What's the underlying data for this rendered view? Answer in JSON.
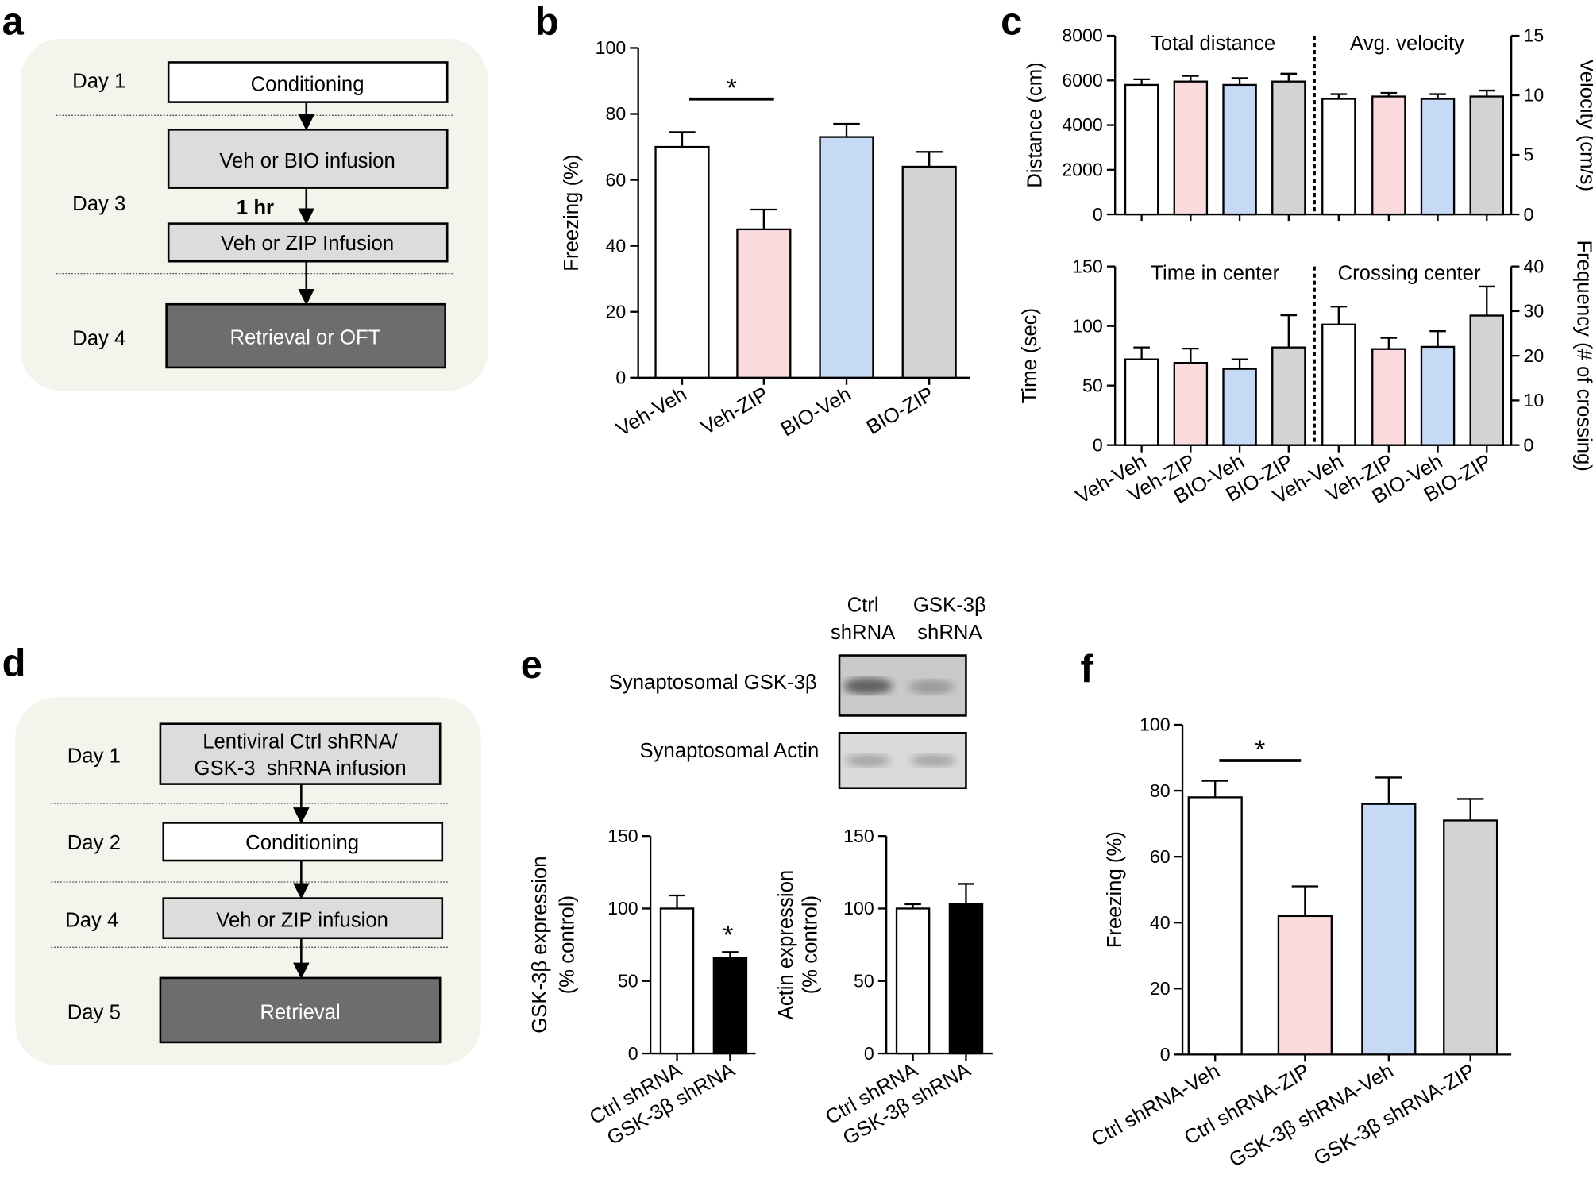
{
  "panel_labels": [
    "a",
    "b",
    "c",
    "d",
    "e",
    "f"
  ],
  "diagram_a": {
    "days": [
      "Day 1",
      "Day 3",
      "Day 4"
    ],
    "boxes": [
      "Conditioning",
      "Veh or BIO infusion",
      "Veh or ZIP Infusion",
      "Retrieval or OFT"
    ],
    "interval": "1 hr"
  },
  "diagram_d": {
    "days": [
      "Day 1",
      "Day 2",
      "Day 4",
      "Day 5"
    ],
    "boxes": [
      [
        "Lentiviral Ctrl shRNA/",
        "GSK-3  shRNA infusion"
      ],
      "Conditioning",
      "Veh or ZIP infusion",
      "Retrieval"
    ]
  },
  "blot": {
    "columns": [
      [
        "Ctrl",
        "shRNA"
      ],
      [
        "GSK-3β",
        "shRNA"
      ]
    ],
    "rows": [
      "Synaptosomal GSK-3β",
      "Synaptosomal Actin"
    ]
  },
  "chart_data": [
    {
      "type": "bar",
      "ylabel": "Freezing (%)",
      "categories": [
        "Veh-Veh",
        "Veh-ZIP",
        "BIO-Veh",
        "BIO-ZIP"
      ],
      "values": [
        70,
        45,
        73,
        64
      ],
      "errors": [
        4.5,
        6,
        4,
        4.5
      ],
      "colors": [
        "#ffffff",
        "#fadadd",
        "#c6d9f5",
        "#d3d3d3"
      ],
      "ylim": [
        0,
        100
      ],
      "yticks": [
        0,
        20,
        40,
        60,
        80,
        100
      ],
      "annotation": "*"
    },
    {
      "type": "bar",
      "title": "Total distance",
      "ylabel": "Distance (cm)",
      "values": [
        5800,
        5950,
        5800,
        5950
      ],
      "errors": [
        250,
        250,
        300,
        350
      ],
      "colors": [
        "#ffffff",
        "#fadadd",
        "#c6d9f5",
        "#d3d3d3"
      ],
      "ylim": [
        0,
        8000
      ],
      "yticks": [
        0,
        2000,
        4000,
        6000,
        8000
      ]
    },
    {
      "type": "bar",
      "title": "Avg. velocity",
      "y2label": "Velocity (cm/s)",
      "values": [
        9.7,
        9.9,
        9.7,
        9.9
      ],
      "errors": [
        0.4,
        0.3,
        0.4,
        0.5
      ],
      "colors": [
        "#ffffff",
        "#fadadd",
        "#c6d9f5",
        "#d3d3d3"
      ],
      "y2lim": [
        0,
        15
      ],
      "y2ticks": [
        0,
        5,
        10,
        15
      ]
    },
    {
      "type": "bar",
      "title": "Time in center",
      "ylabel": "Time (sec)",
      "categories": [
        "Veh-Veh",
        "Veh-ZIP",
        "BIO-Veh",
        "BIO-ZIP"
      ],
      "values": [
        72,
        69,
        64,
        82
      ],
      "errors": [
        10,
        12,
        8,
        27
      ],
      "colors": [
        "#ffffff",
        "#fadadd",
        "#c6d9f5",
        "#d3d3d3"
      ],
      "ylim": [
        0,
        150
      ],
      "yticks": [
        0,
        50,
        100,
        150
      ]
    },
    {
      "type": "bar",
      "title": "Crossing center",
      "y2label": "Frequency (# of crossing)",
      "categories": [
        "Veh-Veh",
        "Veh-ZIP",
        "BIO-Veh",
        "BIO-ZIP"
      ],
      "values": [
        27,
        21.5,
        22,
        29
      ],
      "errors": [
        4,
        2.5,
        3.5,
        6.5
      ],
      "colors": [
        "#ffffff",
        "#fadadd",
        "#c6d9f5",
        "#d3d3d3"
      ],
      "y2lim": [
        0,
        40
      ],
      "y2ticks": [
        0,
        10,
        20,
        30,
        40
      ]
    },
    {
      "type": "bar",
      "ylabel": [
        "GSK-3β expression",
        "(% control)"
      ],
      "categories": [
        "Ctrl shRNA",
        "GSK-3β shRNA"
      ],
      "values": [
        100,
        66
      ],
      "errors": [
        9,
        4
      ],
      "colors": [
        "#ffffff",
        "#000000"
      ],
      "ylim": [
        0,
        150
      ],
      "yticks": [
        0,
        50,
        100,
        150
      ],
      "annotation": "*"
    },
    {
      "type": "bar",
      "ylabel": [
        "Actin expression",
        "(% control)"
      ],
      "categories": [
        "Ctrl shRNA",
        "GSK-3β shRNA"
      ],
      "values": [
        100,
        103
      ],
      "errors": [
        3,
        14
      ],
      "colors": [
        "#ffffff",
        "#000000"
      ],
      "ylim": [
        0,
        150
      ],
      "yticks": [
        0,
        50,
        100,
        150
      ]
    },
    {
      "type": "bar",
      "ylabel": "Freezing (%)",
      "categories": [
        "Ctrl shRNA-Veh",
        "Ctrl shRNA-ZIP",
        "GSK-3β shRNA-Veh",
        "GSK-3β shRNA-ZIP"
      ],
      "values": [
        78,
        42,
        76,
        71
      ],
      "errors": [
        5,
        9,
        8,
        6.5
      ],
      "colors": [
        "#ffffff",
        "#fadadd",
        "#c6d9f5",
        "#d3d3d3"
      ],
      "ylim": [
        0,
        100
      ],
      "yticks": [
        0,
        20,
        40,
        60,
        80,
        100
      ],
      "annotation": "*"
    }
  ]
}
